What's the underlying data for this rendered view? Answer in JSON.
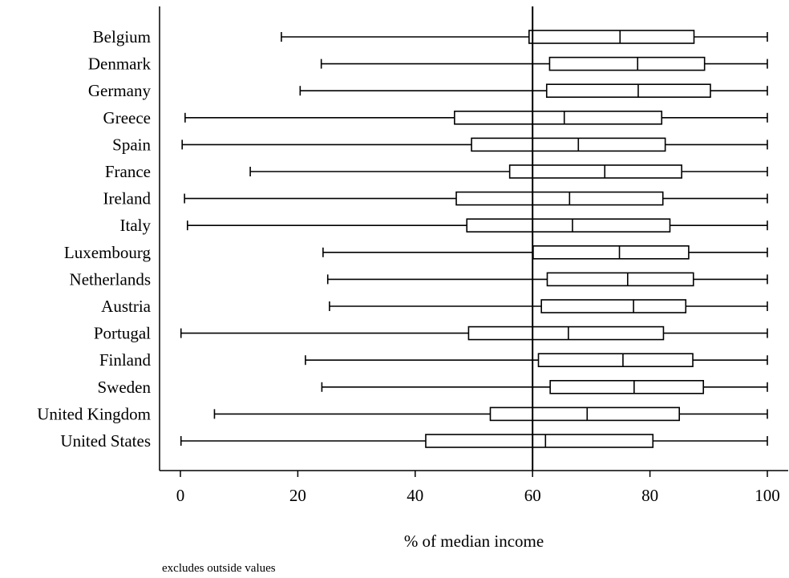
{
  "chart_data": {
    "type": "boxplot",
    "orientation": "horizontal",
    "xlabel": "% of median income",
    "xlim": [
      0,
      100
    ],
    "xticks": [
      0,
      20,
      40,
      60,
      80,
      100
    ],
    "reference_line": 60,
    "note": "excludes outside values",
    "categories": [
      "Belgium",
      "Denmark",
      "Germany",
      "Greece",
      "Spain",
      "France",
      "Ireland",
      "Italy",
      "Luxembourg",
      "Netherlands",
      "Austria",
      "Portugal",
      "Finland",
      "Sweden",
      "United Kingdom",
      "United States"
    ],
    "boxes": [
      {
        "min": 17.2,
        "q1": 59.4,
        "median": 74.9,
        "q3": 87.5,
        "max": 100
      },
      {
        "min": 24.0,
        "q1": 62.9,
        "median": 77.9,
        "q3": 89.3,
        "max": 100
      },
      {
        "min": 20.4,
        "q1": 62.4,
        "median": 78.0,
        "q3": 90.3,
        "max": 100
      },
      {
        "min": 0.8,
        "q1": 46.7,
        "median": 65.4,
        "q3": 82.0,
        "max": 100
      },
      {
        "min": 0.3,
        "q1": 49.6,
        "median": 67.8,
        "q3": 82.6,
        "max": 100
      },
      {
        "min": 11.9,
        "q1": 56.1,
        "median": 72.3,
        "q3": 85.4,
        "max": 100
      },
      {
        "min": 0.7,
        "q1": 47.0,
        "median": 66.3,
        "q3": 82.2,
        "max": 100
      },
      {
        "min": 1.2,
        "q1": 48.8,
        "median": 66.8,
        "q3": 83.4,
        "max": 100
      },
      {
        "min": 24.3,
        "q1": 60.1,
        "median": 74.8,
        "q3": 86.6,
        "max": 100
      },
      {
        "min": 25.1,
        "q1": 62.5,
        "median": 76.2,
        "q3": 87.4,
        "max": 100
      },
      {
        "min": 25.4,
        "q1": 61.5,
        "median": 77.2,
        "q3": 86.1,
        "max": 100
      },
      {
        "min": 0.1,
        "q1": 49.1,
        "median": 66.1,
        "q3": 82.3,
        "max": 100
      },
      {
        "min": 21.3,
        "q1": 61.0,
        "median": 75.4,
        "q3": 87.3,
        "max": 100
      },
      {
        "min": 24.1,
        "q1": 63.0,
        "median": 77.3,
        "q3": 89.1,
        "max": 100
      },
      {
        "min": 5.8,
        "q1": 52.8,
        "median": 69.3,
        "q3": 85.0,
        "max": 100
      },
      {
        "min": 0.1,
        "q1": 41.8,
        "median": 62.2,
        "q3": 80.5,
        "max": 100
      }
    ]
  }
}
